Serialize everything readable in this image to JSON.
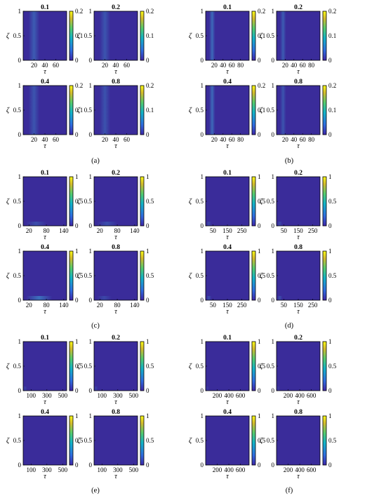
{
  "chart_data": [
    {
      "type": "heatmap",
      "panel": "(a)",
      "title": "0.1",
      "xlabel": "τ",
      "ylabel": "ζ",
      "xlim": [
        0,
        80
      ],
      "xticks": [
        20,
        40,
        60
      ],
      "ylim": [
        0,
        1
      ],
      "yticks": [
        0,
        0.5,
        1
      ],
      "clim": [
        0,
        0.2
      ],
      "cticks": [
        0,
        0.1,
        0.2
      ],
      "stripe_x": [
        10,
        30
      ],
      "stripe_intensity": 0.35
    },
    {
      "type": "heatmap",
      "panel": "(a)",
      "title": "0.2",
      "xlabel": "τ",
      "ylabel": "ζ",
      "xlim": [
        0,
        80
      ],
      "xticks": [
        20,
        40,
        60
      ],
      "ylim": [
        0,
        1
      ],
      "yticks": [
        0,
        0.5,
        1
      ],
      "clim": [
        0,
        0.2
      ],
      "cticks": [
        0,
        0.1,
        0.2
      ],
      "stripe_x": [
        10,
        30
      ],
      "stripe_intensity": 0.3
    },
    {
      "type": "heatmap",
      "panel": "(a)",
      "title": "0.4",
      "xlabel": "τ",
      "ylabel": "ζ",
      "xlim": [
        0,
        80
      ],
      "xticks": [
        20,
        40,
        60
      ],
      "ylim": [
        0,
        1
      ],
      "yticks": [
        0,
        0.5,
        1
      ],
      "clim": [
        0,
        0.2
      ],
      "cticks": [
        0,
        0.1,
        0.2
      ],
      "stripe_x": [
        10,
        30
      ],
      "stripe_intensity": 0.3
    },
    {
      "type": "heatmap",
      "panel": "(a)",
      "title": "0.8",
      "xlabel": "τ",
      "ylabel": "ζ",
      "xlim": [
        0,
        80
      ],
      "xticks": [
        20,
        40,
        60
      ],
      "ylim": [
        0,
        1
      ],
      "yticks": [
        0,
        0.5,
        1
      ],
      "clim": [
        0,
        0.2
      ],
      "cticks": [
        0,
        0.1,
        0.2
      ],
      "stripe_x": [
        10,
        30
      ],
      "stripe_intensity": 0.28
    },
    {
      "type": "heatmap",
      "panel": "(b)",
      "title": "0.1",
      "xlabel": "τ",
      "ylabel": "ζ",
      "xlim": [
        0,
        100
      ],
      "xticks": [
        20,
        40,
        60,
        80
      ],
      "ylim": [
        0,
        1
      ],
      "yticks": [
        0,
        0.5,
        1
      ],
      "clim": [
        0,
        0.2
      ],
      "cticks": [
        0,
        0.1,
        0.2
      ],
      "stripe_x": [
        8,
        22
      ],
      "stripe_intensity": 0.45
    },
    {
      "type": "heatmap",
      "panel": "(b)",
      "title": "0.2",
      "xlabel": "τ",
      "ylabel": "ζ",
      "xlim": [
        0,
        100
      ],
      "xticks": [
        20,
        40,
        60,
        80
      ],
      "ylim": [
        0,
        1
      ],
      "yticks": [
        0,
        0.5,
        1
      ],
      "clim": [
        0,
        0.2
      ],
      "cticks": [
        0,
        0.1,
        0.2
      ],
      "stripe_x": [
        8,
        22
      ],
      "stripe_intensity": 0.35
    },
    {
      "type": "heatmap",
      "panel": "(b)",
      "title": "0.4",
      "xlabel": "τ",
      "ylabel": "ζ",
      "xlim": [
        0,
        100
      ],
      "xticks": [
        20,
        40,
        60,
        80
      ],
      "ylim": [
        0,
        1
      ],
      "yticks": [
        0,
        0.5,
        1
      ],
      "clim": [
        0,
        0.2
      ],
      "cticks": [
        0,
        0.1,
        0.2
      ],
      "stripe_x": [
        8,
        22
      ],
      "stripe_intensity": 0.45
    },
    {
      "type": "heatmap",
      "panel": "(b)",
      "title": "0.8",
      "xlabel": "τ",
      "ylabel": "ζ",
      "xlim": [
        0,
        100
      ],
      "xticks": [
        20,
        40,
        60,
        80
      ],
      "ylim": [
        0,
        1
      ],
      "yticks": [
        0,
        0.5,
        1
      ],
      "clim": [
        0,
        0.2
      ],
      "cticks": [
        0,
        0.1,
        0.2
      ],
      "stripe_x": [
        8,
        22
      ],
      "stripe_intensity": 0.3
    },
    {
      "type": "heatmap",
      "panel": "(c)",
      "title": "0.1",
      "xlabel": "τ",
      "ylabel": "ζ",
      "xlim": [
        0,
        150
      ],
      "xticks": [
        20,
        80,
        140
      ],
      "ylim": [
        0,
        1
      ],
      "yticks": [
        0,
        0.5,
        1
      ],
      "clim": [
        0,
        1
      ],
      "cticks": [
        0,
        0.5,
        1
      ],
      "stripe_x": [
        10,
        80
      ],
      "stripe_intensity": 0.25
    },
    {
      "type": "heatmap",
      "panel": "(c)",
      "title": "0.2",
      "xlabel": "τ",
      "ylabel": "ζ",
      "xlim": [
        0,
        150
      ],
      "xticks": [
        20,
        80,
        140
      ],
      "ylim": [
        0,
        1
      ],
      "yticks": [
        0,
        0.5,
        1
      ],
      "clim": [
        0,
        1
      ],
      "cticks": [
        0,
        0.5,
        1
      ],
      "stripe_x": [
        10,
        80
      ],
      "stripe_intensity": 0.25
    },
    {
      "type": "heatmap",
      "panel": "(c)",
      "title": "0.4",
      "xlabel": "τ",
      "ylabel": "ζ",
      "xlim": [
        0,
        150
      ],
      "xticks": [
        20,
        80,
        140
      ],
      "ylim": [
        0,
        1
      ],
      "yticks": [
        0,
        0.5,
        1
      ],
      "clim": [
        0,
        1
      ],
      "cticks": [
        0,
        0.5,
        1
      ],
      "stripe_x": [
        10,
        100
      ],
      "stripe_intensity": 0.5
    },
    {
      "type": "heatmap",
      "panel": "(c)",
      "title": "0.8",
      "xlabel": "τ",
      "ylabel": "ζ",
      "xlim": [
        0,
        150
      ],
      "xticks": [
        20,
        80,
        140
      ],
      "ylim": [
        0,
        1
      ],
      "yticks": [
        0,
        0.5,
        1
      ],
      "clim": [
        0,
        1
      ],
      "cticks": [
        0,
        0.5,
        1
      ],
      "stripe_x": [
        10,
        60
      ],
      "stripe_intensity": 0.2
    },
    {
      "type": "heatmap",
      "panel": "(d)",
      "title": "0.1",
      "xlabel": "τ",
      "ylabel": "ζ",
      "xlim": [
        0,
        300
      ],
      "xticks": [
        50,
        150,
        250
      ],
      "ylim": [
        0,
        1
      ],
      "yticks": [
        0,
        0.5,
        1
      ],
      "clim": [
        0,
        1
      ],
      "cticks": [
        0,
        0.5,
        1
      ],
      "stripe_x": [
        5,
        40
      ],
      "stripe_intensity": 0.2
    },
    {
      "type": "heatmap",
      "panel": "(d)",
      "title": "0.2",
      "xlabel": "τ",
      "ylabel": "ζ",
      "xlim": [
        0,
        300
      ],
      "xticks": [
        50,
        150,
        250
      ],
      "ylim": [
        0,
        1
      ],
      "yticks": [
        0,
        0.5,
        1
      ],
      "clim": [
        0,
        1
      ],
      "cticks": [
        0,
        0.5,
        1
      ],
      "stripe_x": [
        5,
        40
      ],
      "stripe_intensity": 0.2
    },
    {
      "type": "heatmap",
      "panel": "(d)",
      "title": "0.4",
      "xlabel": "τ",
      "ylabel": "ζ",
      "xlim": [
        0,
        300
      ],
      "xticks": [
        50,
        150,
        250
      ],
      "ylim": [
        0,
        1
      ],
      "yticks": [
        0,
        0.5,
        1
      ],
      "clim": [
        0,
        1
      ],
      "cticks": [
        0,
        0.5,
        1
      ],
      "stripe_x": [
        5,
        40
      ],
      "stripe_intensity": 0.25
    },
    {
      "type": "heatmap",
      "panel": "(d)",
      "title": "0.8",
      "xlabel": "τ",
      "ylabel": "ζ",
      "xlim": [
        0,
        300
      ],
      "xticks": [
        50,
        150,
        250
      ],
      "ylim": [
        0,
        1
      ],
      "yticks": [
        0,
        0.5,
        1
      ],
      "clim": [
        0,
        1
      ],
      "cticks": [
        0,
        0.5,
        1
      ],
      "stripe_x": [
        5,
        40
      ],
      "stripe_intensity": 0.25
    },
    {
      "type": "heatmap",
      "panel": "(e)",
      "title": "0.1",
      "xlabel": "τ",
      "ylabel": "ζ",
      "xlim": [
        0,
        550
      ],
      "xticks": [
        100,
        300,
        500
      ],
      "ylim": [
        0,
        1
      ],
      "yticks": [
        0,
        0.5,
        1
      ],
      "clim": [
        0,
        1
      ],
      "cticks": [
        0,
        0.5,
        1
      ],
      "stripe_x": [
        0,
        50
      ],
      "stripe_intensity": 0.15
    },
    {
      "type": "heatmap",
      "panel": "(e)",
      "title": "0.2",
      "xlabel": "τ",
      "ylabel": "ζ",
      "xlim": [
        0,
        550
      ],
      "xticks": [
        100,
        300,
        500
      ],
      "ylim": [
        0,
        1
      ],
      "yticks": [
        0,
        0.5,
        1
      ],
      "clim": [
        0,
        1
      ],
      "cticks": [
        0,
        0.5,
        1
      ],
      "stripe_x": [
        0,
        50
      ],
      "stripe_intensity": 0.15
    },
    {
      "type": "heatmap",
      "panel": "(e)",
      "title": "0.4",
      "xlabel": "τ",
      "ylabel": "ζ",
      "xlim": [
        0,
        550
      ],
      "xticks": [
        100,
        300,
        500
      ],
      "ylim": [
        0,
        1
      ],
      "yticks": [
        0,
        0.5,
        1
      ],
      "clim": [
        0,
        1
      ],
      "cticks": [
        0,
        0.5,
        1
      ],
      "stripe_x": [
        0,
        50
      ],
      "stripe_intensity": 0
    },
    {
      "type": "heatmap",
      "panel": "(e)",
      "title": "0.8",
      "xlabel": "τ",
      "ylabel": "ζ",
      "xlim": [
        0,
        550
      ],
      "xticks": [
        100,
        300,
        500
      ],
      "ylim": [
        0,
        1
      ],
      "yticks": [
        0,
        0.5,
        1
      ],
      "clim": [
        0,
        1
      ],
      "cticks": [
        0,
        0.5,
        1
      ],
      "stripe_x": [
        0,
        50
      ],
      "stripe_intensity": 0
    },
    {
      "type": "heatmap",
      "panel": "(f)",
      "title": "0.1",
      "xlabel": "τ",
      "ylabel": "ζ",
      "xlim": [
        0,
        750
      ],
      "xticks": [
        200,
        400,
        600
      ],
      "ylim": [
        0,
        1
      ],
      "yticks": [
        0,
        0.5,
        1
      ],
      "clim": [
        0,
        1
      ],
      "cticks": [
        0,
        0.5,
        1
      ],
      "stripe_x": [
        0,
        60
      ],
      "stripe_intensity": 0.1
    },
    {
      "type": "heatmap",
      "panel": "(f)",
      "title": "0.2",
      "xlabel": "τ",
      "ylabel": "ζ",
      "xlim": [
        0,
        750
      ],
      "xticks": [
        200,
        400,
        600
      ],
      "ylim": [
        0,
        1
      ],
      "yticks": [
        0,
        0.5,
        1
      ],
      "clim": [
        0,
        1
      ],
      "cticks": [
        0,
        0.5,
        1
      ],
      "stripe_x": [
        0,
        60
      ],
      "stripe_intensity": 0.1
    },
    {
      "type": "heatmap",
      "panel": "(f)",
      "title": "0.4",
      "xlabel": "τ",
      "ylabel": "ζ",
      "xlim": [
        0,
        750
      ],
      "xticks": [
        200,
        400,
        600
      ],
      "ylim": [
        0,
        1
      ],
      "yticks": [
        0,
        0.5,
        1
      ],
      "clim": [
        0,
        1
      ],
      "cticks": [
        0,
        0.5,
        1
      ],
      "stripe_x": [
        0,
        60
      ],
      "stripe_intensity": 0
    },
    {
      "type": "heatmap",
      "panel": "(f)",
      "title": "0.8",
      "xlabel": "τ",
      "ylabel": "ζ",
      "xlim": [
        0,
        750
      ],
      "xticks": [
        200,
        400,
        600
      ],
      "ylim": [
        0,
        1
      ],
      "yticks": [
        0,
        0.5,
        1
      ],
      "clim": [
        0,
        1
      ],
      "cticks": [
        0,
        0.5,
        1
      ],
      "stripe_x": [
        0,
        60
      ],
      "stripe_intensity": 0
    }
  ],
  "panel_labels": [
    "(a)",
    "(b)",
    "(c)",
    "(d)",
    "(e)",
    "(f)"
  ],
  "colors": {
    "background": "#3a2c9a",
    "colormap": [
      "#3e26a8",
      "#2f6de0",
      "#12b4c9",
      "#54cc6f",
      "#d4bb2f",
      "#f9fb15"
    ]
  }
}
